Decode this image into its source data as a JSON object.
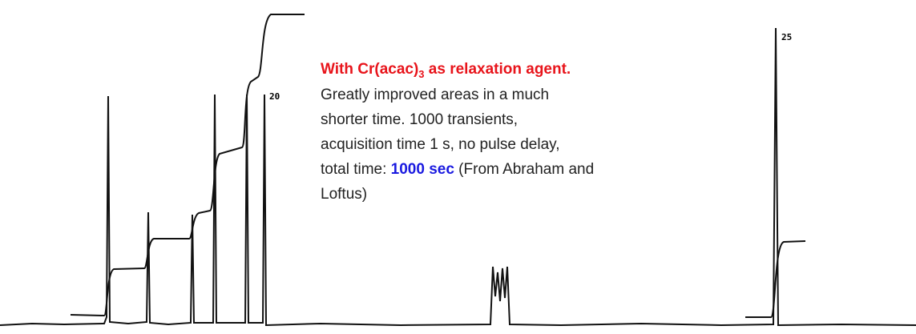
{
  "peak_labels": [
    "20",
    "25"
  ],
  "annotation": {
    "title": {
      "before": "With Cr(acac)",
      "subscript": "3",
      "after": " as relaxation agent."
    },
    "lines": [
      "Greatly improved areas in a much",
      "shorter time. 1000 transients,",
      "acquisition time 1 s, no pulse delay,"
    ],
    "total_line": {
      "before": "total time: ",
      "highlight": "1000 sec",
      "after": " (From Abraham and"
    },
    "last_line": "Loftus)"
  }
}
